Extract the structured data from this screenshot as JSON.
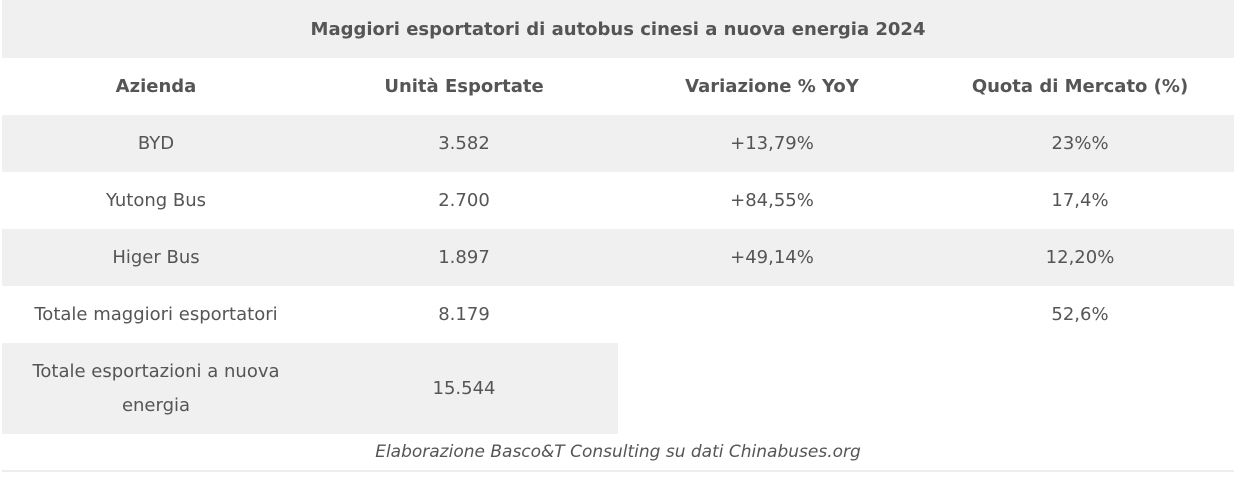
{
  "table": {
    "title": "Maggiori esportatori di autobus cinesi a nuova energia 2024",
    "headers": [
      "Azienda",
      "Unità Esportate",
      "Variazione % YoY",
      "Quota di Mercato (%)"
    ],
    "rows": [
      {
        "azienda": "BYD",
        "unita": "3.582",
        "variazione": "+13,79%",
        "quota": "23%%"
      },
      {
        "azienda": "Yutong Bus",
        "unita": "2.700",
        "variazione": "+84,55%",
        "quota": "17,4%"
      },
      {
        "azienda": "Higer Bus",
        "unita": "1.897",
        "variazione": "+49,14%",
        "quota": "12,20%"
      },
      {
        "azienda": "Totale maggiori esportatori",
        "unita": "8.179",
        "quota": "52,6%"
      },
      {
        "azienda": "Totale esportazioni a nuova energia",
        "unita": "15.544"
      }
    ],
    "caption": "Elaborazione Basco&T Consulting su dati Chinabuses.org"
  }
}
